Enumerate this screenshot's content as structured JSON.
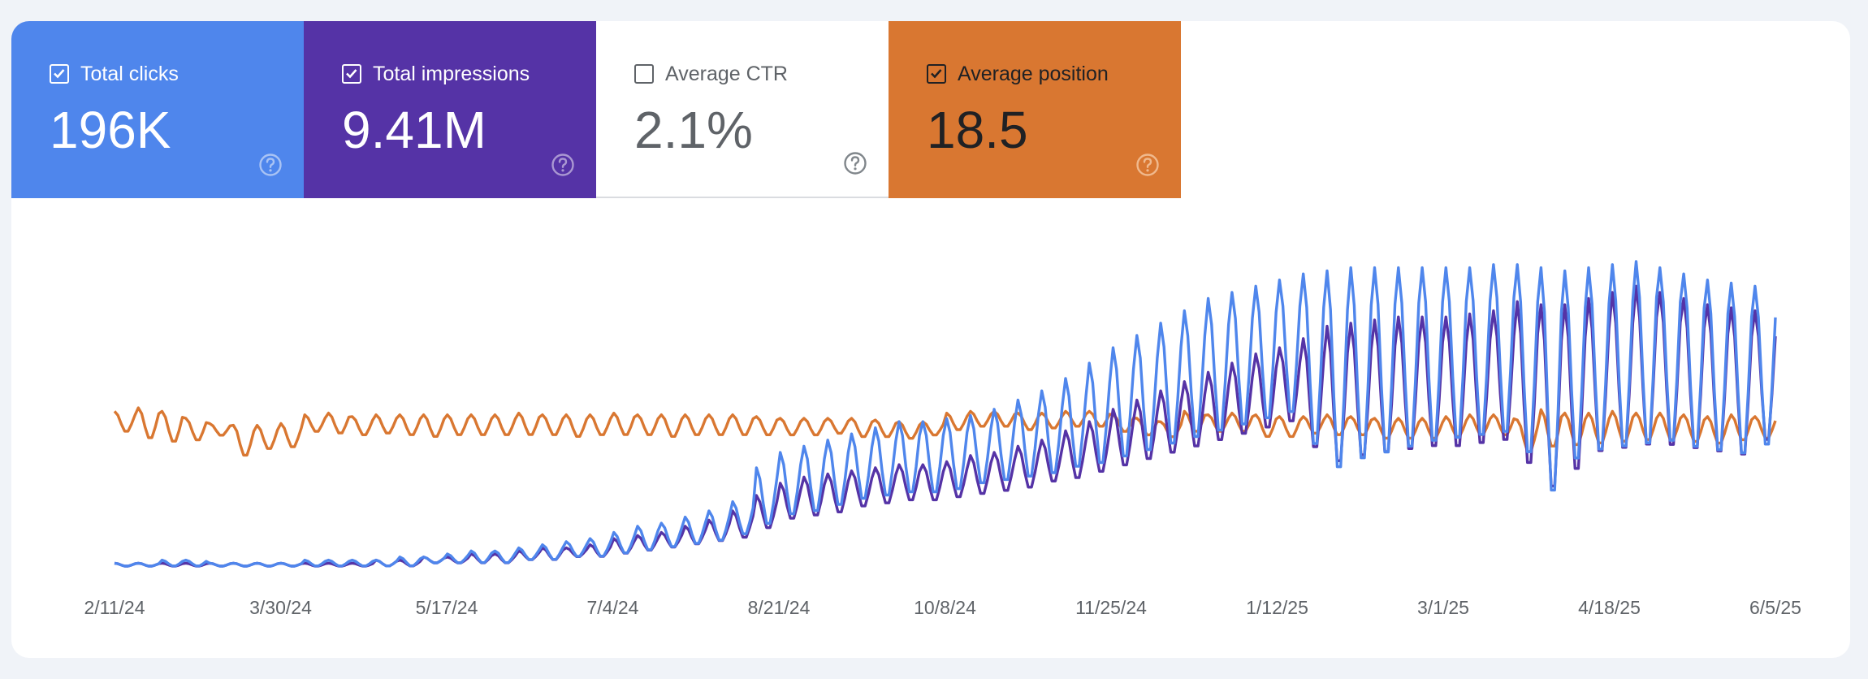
{
  "metrics": [
    {
      "label": "Total clicks",
      "value": "196K",
      "checked": true,
      "bg": "#4f86ec",
      "fg": "#ffffff",
      "help_color": "#a9c3f4"
    },
    {
      "label": "Total impressions",
      "value": "9.41M",
      "checked": true,
      "bg": "#5533a6",
      "fg": "#ffffff",
      "help_color": "#aa98d2"
    },
    {
      "label": "Average CTR",
      "value": "2.1%",
      "checked": false,
      "bg": "#ffffff",
      "fg": "#5f6368",
      "help_color": "#80868b"
    },
    {
      "label": "Average position",
      "value": "18.5",
      "checked": true,
      "bg": "#d97731",
      "fg": "#202124",
      "help_color": "#f0b98d"
    }
  ],
  "icons": {
    "checkbox": "checkbox-icon",
    "help": "help-circle-icon"
  },
  "chart_data": {
    "type": "line",
    "x_ticks": [
      "2/11/24",
      "3/30/24",
      "5/17/24",
      "7/4/24",
      "8/21/24",
      "10/8/24",
      "11/25/24",
      "1/12/25",
      "3/1/25",
      "4/18/25",
      "6/5/25"
    ],
    "x_range": [
      "2/11/24",
      "6/5/25"
    ],
    "y_axis_visible": false,
    "grid": false,
    "series": [
      {
        "name": "Average position",
        "color": "#d97731",
        "weekly_low": [
          32,
          28,
          26,
          27,
          30,
          18,
          22,
          23,
          32,
          31,
          30,
          31,
          30,
          29,
          30,
          30,
          30,
          30,
          30,
          29,
          30,
          30,
          30,
          29,
          30,
          30,
          30,
          30,
          30,
          30,
          31,
          29,
          29,
          28,
          30,
          33,
          35,
          35,
          33,
          34,
          35,
          35,
          32,
          30,
          29,
          32,
          32,
          32,
          29,
          29,
          31,
          30,
          30,
          28,
          28,
          28,
          29,
          30,
          30,
          20,
          23,
          24,
          25,
          26,
          27,
          27,
          26,
          25,
          27,
          28
        ],
        "weekly_high": [
          44,
          46,
          44,
          40,
          37,
          36,
          36,
          37,
          42,
          43,
          41,
          42,
          42,
          42,
          42,
          42,
          42,
          43,
          42,
          42,
          42,
          43,
          42,
          42,
          42,
          42,
          42,
          41,
          40,
          40,
          40,
          40,
          39,
          38,
          38,
          43,
          44,
          44,
          43,
          43,
          44,
          44,
          42,
          40,
          38,
          44,
          42,
          43,
          42,
          41,
          41,
          42,
          41,
          40,
          40,
          40,
          41,
          42,
          42,
          39,
          45,
          43,
          43,
          44,
          43,
          43,
          42,
          41,
          42,
          41
        ]
      },
      {
        "name": "Total impressions",
        "color": "#5533a6",
        "weekly_low": [
          1,
          1,
          1,
          1,
          1,
          1,
          1,
          1,
          1,
          1,
          1,
          1,
          1,
          2,
          2,
          2,
          2,
          3,
          3,
          4,
          4,
          5,
          6,
          7,
          8,
          9,
          10,
          13,
          16,
          17,
          18,
          20,
          21,
          22,
          22,
          23,
          24,
          25,
          26,
          28,
          29,
          31,
          33,
          35,
          37,
          39,
          41,
          43,
          45,
          47,
          38,
          33,
          35,
          36,
          37,
          38,
          38,
          39,
          40,
          32,
          24,
          30,
          36,
          37,
          38,
          38,
          37,
          36,
          35,
          40
        ],
        "weekly_high": [
          2,
          2,
          2,
          2,
          2,
          2,
          2,
          2,
          2,
          2,
          2,
          3,
          3,
          4,
          4,
          5,
          5,
          6,
          7,
          7,
          8,
          10,
          11,
          12,
          14,
          16,
          19,
          24,
          28,
          30,
          31,
          32,
          33,
          34,
          34,
          35,
          37,
          38,
          40,
          42,
          45,
          48,
          52,
          55,
          58,
          61,
          64,
          67,
          70,
          72,
          75,
          79,
          80,
          81,
          82,
          82,
          82,
          83,
          84,
          87,
          86,
          86,
          88,
          90,
          92,
          90,
          88,
          86,
          85,
          84
        ]
      },
      {
        "name": "Total clicks",
        "color": "#4f86ec",
        "weekly_low": [
          1,
          1,
          1,
          1,
          1,
          1,
          1,
          1,
          1,
          1,
          1,
          1,
          1,
          2,
          2,
          2,
          2,
          3,
          3,
          4,
          4,
          5,
          6,
          7,
          8,
          9,
          11,
          14,
          17,
          18,
          20,
          22,
          23,
          24,
          24,
          25,
          27,
          28,
          29,
          30,
          32,
          33,
          35,
          37,
          39,
          41,
          43,
          45,
          47,
          49,
          38,
          30,
          33,
          35,
          37,
          39,
          40,
          41,
          42,
          35,
          22,
          33,
          36,
          37,
          38,
          39,
          37,
          36,
          35,
          38
        ],
        "weekly_high": [
          2,
          2,
          3,
          3,
          2,
          2,
          2,
          2,
          3,
          3,
          3,
          3,
          4,
          4,
          5,
          6,
          6,
          7,
          8,
          9,
          10,
          12,
          14,
          15,
          17,
          19,
          22,
          33,
          38,
          40,
          42,
          44,
          46,
          48,
          48,
          49,
          50,
          52,
          55,
          58,
          62,
          67,
          72,
          76,
          80,
          84,
          88,
          90,
          92,
          94,
          96,
          97,
          98,
          98,
          98,
          98,
          98,
          98,
          99,
          99,
          98,
          97,
          98,
          99,
          100,
          98,
          96,
          94,
          93,
          92
        ]
      }
    ]
  }
}
